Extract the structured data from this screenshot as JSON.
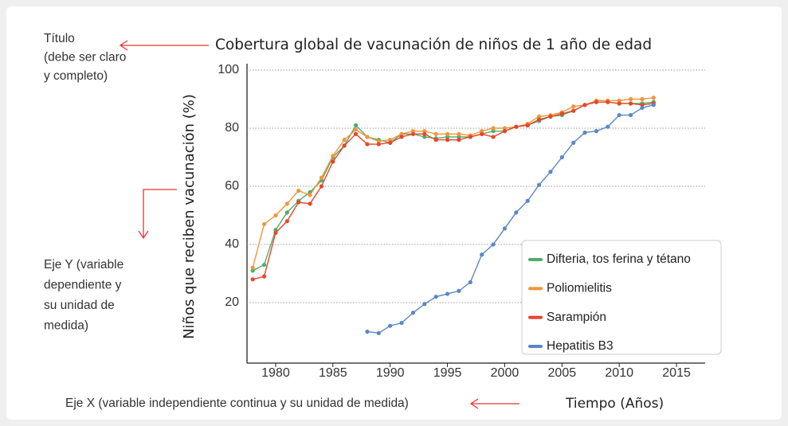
{
  "chart_data": {
    "type": "line",
    "title": "Cobertura global de vacunación de niños de 1 año de edad",
    "y_label": "Niños que reciben vacunación (%)",
    "x_label": "Tiempo (Años)",
    "x": [
      1978,
      1979,
      1980,
      1981,
      1982,
      1983,
      1984,
      1985,
      1986,
      1987,
      1988,
      1989,
      1990,
      1991,
      1992,
      1993,
      1994,
      1995,
      1996,
      1997,
      1998,
      1999,
      2000,
      2001,
      2002,
      2003,
      2004,
      2005,
      2006,
      2007,
      2008,
      2009,
      2010,
      2011,
      2012,
      2013
    ],
    "series": [
      {
        "name": "Difteria, tos ferina y tétano",
        "color": "#4caf6a",
        "values": [
          31,
          33,
          45,
          51,
          55,
          58,
          62,
          70,
          74,
          81,
          77,
          76,
          75,
          78,
          78,
          77,
          76.5,
          77,
          77,
          77,
          78,
          79,
          79,
          80.5,
          81,
          82.5,
          84,
          84.5,
          86,
          88,
          89,
          89,
          88.5,
          88.5,
          88.5,
          89
        ]
      },
      {
        "name": "Poliomielitis",
        "color": "#f0963a",
        "values": [
          32,
          47,
          50,
          54,
          58.5,
          57,
          63,
          70.5,
          76,
          79.5,
          77,
          75.5,
          76,
          78,
          79,
          79,
          78,
          78,
          78,
          77.5,
          79,
          80,
          80,
          80.5,
          81.5,
          84,
          84.5,
          85.5,
          87.5,
          88,
          89.5,
          89.5,
          89.5,
          90,
          90,
          90.5
        ]
      },
      {
        "name": "Sarampión",
        "color": "#e8452c",
        "values": [
          28,
          29,
          44,
          48,
          54.5,
          54,
          60,
          68.5,
          74,
          78,
          74.5,
          74.5,
          75,
          77,
          78,
          78,
          76,
          76,
          76,
          77,
          78,
          77,
          79,
          80.5,
          81,
          83,
          84,
          85,
          86,
          88,
          89,
          89,
          88.5,
          88.5,
          88,
          88.5
        ]
      },
      {
        "name": "Hepatitis B3",
        "color": "#5b87c5",
        "values": [
          null,
          null,
          null,
          null,
          null,
          null,
          null,
          null,
          null,
          null,
          10,
          9.5,
          12,
          13,
          16.5,
          19.5,
          22,
          23,
          24,
          27,
          36.5,
          40,
          45.5,
          51,
          55,
          60.5,
          65,
          70,
          75,
          78.5,
          79,
          80.5,
          84.5,
          84.5,
          87,
          88
        ]
      }
    ],
    "xlim": [
      1977.5,
      2017.5
    ],
    "ylim": [
      0,
      100
    ],
    "xticks": [
      1980,
      1985,
      1990,
      1995,
      2000,
      2005,
      2010,
      2015
    ],
    "yticks": [
      20,
      40,
      60,
      80,
      100
    ],
    "grid": true,
    "legend": "lower right"
  },
  "annotations": [
    {
      "lines": [
        "Título",
        "(debe ser claro",
        "y completo)"
      ]
    },
    {
      "lines": [
        "Eje Y (variable",
        "dependiente y",
        "su unidad de",
        "medida)"
      ]
    },
    {
      "lines": [
        "Eje X (variable independiente continua y su unidad de medida)"
      ]
    }
  ]
}
